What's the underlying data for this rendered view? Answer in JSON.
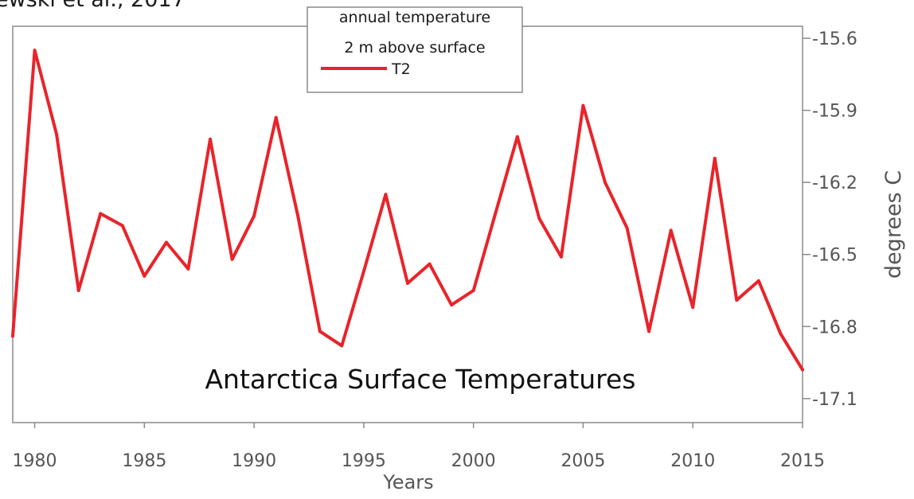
{
  "source_caption": "ewski et al., 2017",
  "chart_data": {
    "type": "line",
    "title": "Antarctica Surface Temperatures",
    "xlabel": "Years",
    "ylabel": "degrees C",
    "y_axis_side": "right",
    "xlim": [
      1979,
      2015
    ],
    "ylim": [
      -17.2,
      -15.55
    ],
    "x_ticks": [
      1980,
      1985,
      1990,
      1995,
      2000,
      2005,
      2010,
      2015
    ],
    "y_ticks": [
      -15.6,
      -15.9,
      -16.2,
      -16.5,
      -16.8,
      -17.1
    ],
    "grid": false,
    "legend": {
      "placement": "top-center",
      "title_lines": [
        "annual temperature",
        "2 m  above surface"
      ],
      "entries": [
        "T2"
      ]
    },
    "series": [
      {
        "name": "T2",
        "color": "#e8242a",
        "x": [
          1979,
          1980,
          1981,
          1982,
          1983,
          1984,
          1985,
          1986,
          1987,
          1988,
          1989,
          1990,
          1991,
          1992,
          1993,
          1994,
          1995,
          1996,
          1997,
          1998,
          1999,
          2000,
          2001,
          2002,
          2003,
          2004,
          2005,
          2006,
          2007,
          2008,
          2009,
          2010,
          2011,
          2012,
          2013,
          2014,
          2015
        ],
        "y": [
          -16.84,
          -15.65,
          -16.0,
          -16.65,
          -16.33,
          -16.38,
          -16.59,
          -16.45,
          -16.56,
          -16.02,
          -16.52,
          -16.34,
          -15.93,
          -16.34,
          -16.82,
          -16.88,
          -16.57,
          -16.25,
          -16.62,
          -16.54,
          -16.71,
          -16.65,
          -16.33,
          -16.01,
          -16.35,
          -16.51,
          -15.88,
          -16.2,
          -16.39,
          -16.82,
          -16.4,
          -16.72,
          -16.1,
          -16.69,
          -16.61,
          -16.83,
          -16.98
        ]
      }
    ]
  }
}
